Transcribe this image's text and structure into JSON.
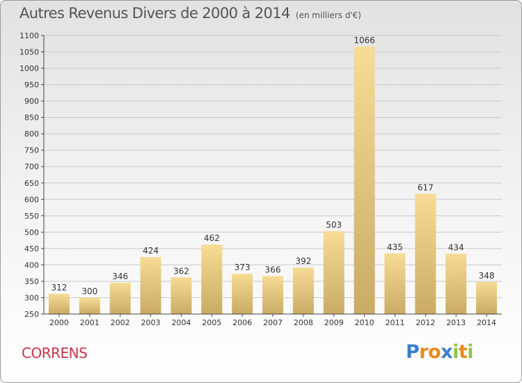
{
  "title": "Autres Revenus Divers de 2000 à 2014",
  "unit": "(en milliers d'€)",
  "commune": "CORRENS",
  "logo": {
    "text": "Proxiti",
    "letters": [
      {
        "ch": "P",
        "color": "#3a7fc8"
      },
      {
        "ch": "r",
        "color": "#e98a1e"
      },
      {
        "ch": "o",
        "color": "#e98a1e"
      },
      {
        "ch": "x",
        "color": "#3a7fc8"
      },
      {
        "ch": "i",
        "color": "#8cc63f"
      },
      {
        "ch": "t",
        "color": "#e98a1e"
      },
      {
        "ch": "i",
        "color": "#8cc63f"
      }
    ]
  },
  "colors": {
    "bar_top": "#f7dc96",
    "bar_bottom": "#c9ab64",
    "grid": "#c8c8c8",
    "axis": "#444444",
    "title": "#555555",
    "commune": "#c8344a"
  },
  "chart_data": {
    "type": "bar",
    "categories": [
      "2000",
      "2001",
      "2002",
      "2003",
      "2004",
      "2005",
      "2006",
      "2007",
      "2008",
      "2009",
      "2010",
      "2011",
      "2012",
      "2013",
      "2014"
    ],
    "values": [
      312,
      300,
      346,
      424,
      362,
      462,
      373,
      366,
      392,
      503,
      1066,
      435,
      617,
      434,
      348
    ],
    "ylim": [
      250,
      1100
    ],
    "yticks": [
      250,
      300,
      350,
      400,
      450,
      500,
      550,
      600,
      650,
      700,
      750,
      800,
      850,
      900,
      950,
      1000,
      1050,
      1100
    ],
    "grid": true,
    "data_labels": true
  }
}
